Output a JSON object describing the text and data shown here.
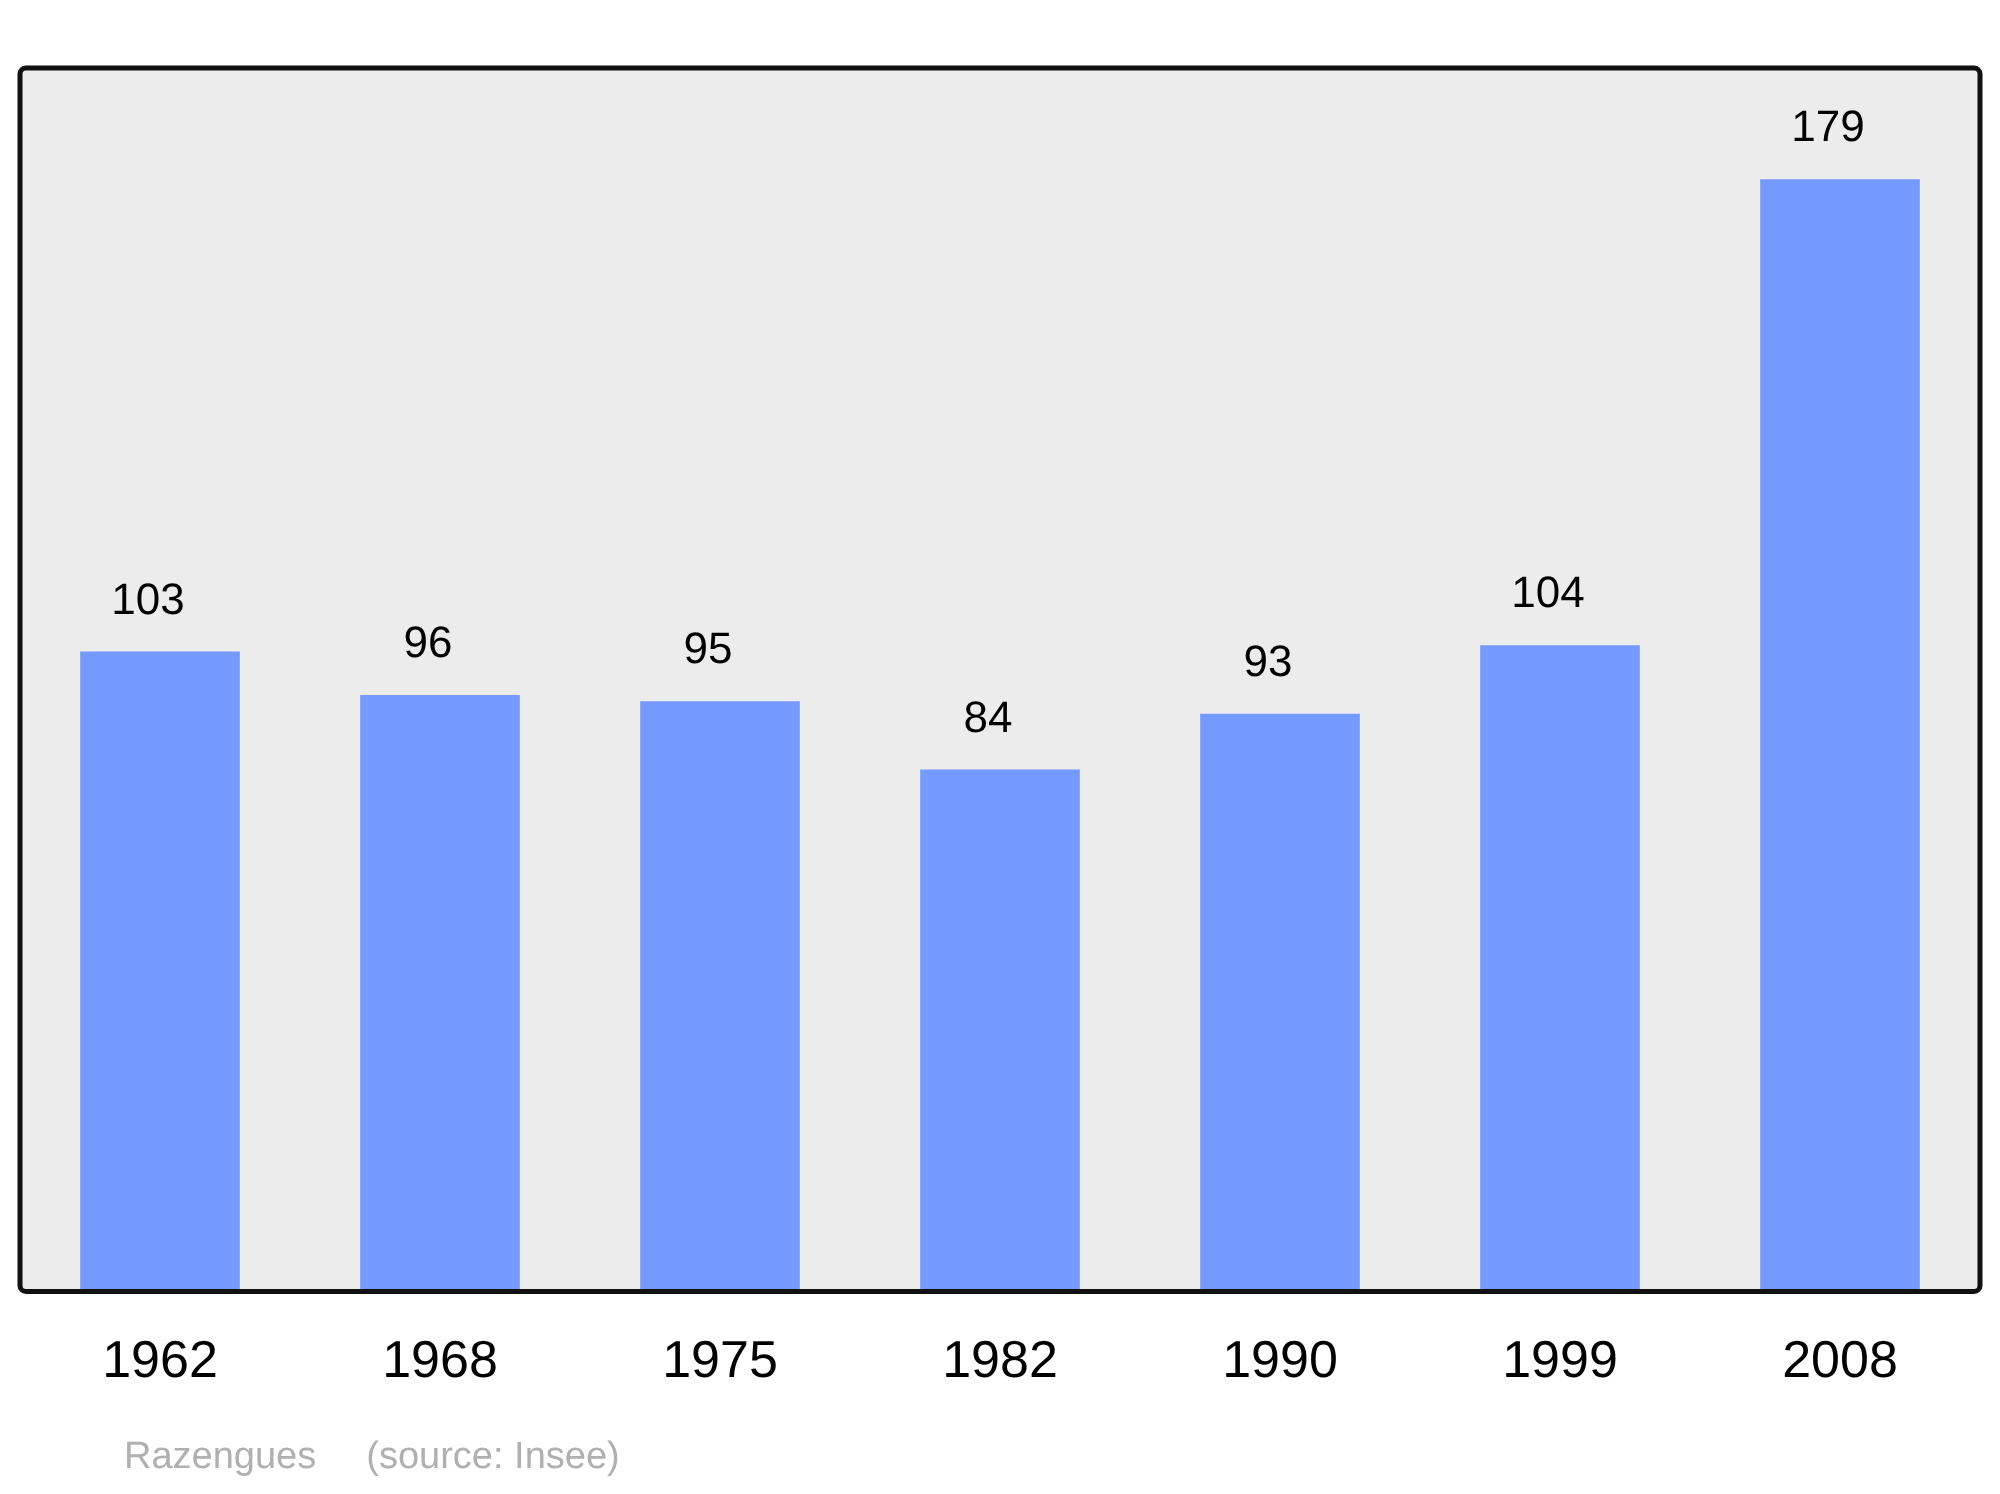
{
  "chart_data": {
    "type": "bar",
    "categories": [
      "1962",
      "1968",
      "1975",
      "1982",
      "1990",
      "1999",
      "2008"
    ],
    "values": [
      103,
      96,
      95,
      84,
      93,
      104,
      179
    ],
    "color": "#7499ff",
    "data_labels": true,
    "grid": false,
    "legend": false,
    "tick_labels": "x",
    "annotations": [
      "Razengues",
      "(source: Insee)"
    ]
  }
}
